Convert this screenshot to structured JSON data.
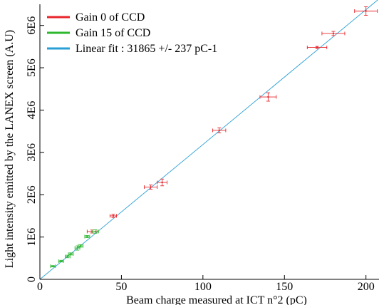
{
  "chart_data": {
    "type": "scatter",
    "xlabel": "Beam charge measured at ICT n°2 (pC)",
    "ylabel": "Light intensity emitted by the LANEX screen (A.U)",
    "xlim": [
      0,
      208
    ],
    "ylim": [
      0,
      6500000
    ],
    "x_ticks": [
      {
        "value": 0,
        "label": "0"
      },
      {
        "value": 50,
        "label": "50"
      },
      {
        "value": 100,
        "label": "100"
      },
      {
        "value": 150,
        "label": "150"
      },
      {
        "value": 200,
        "label": "200"
      }
    ],
    "y_ticks": [
      {
        "value": 0,
        "label": "0"
      },
      {
        "value": 1000000,
        "label": "1E6"
      },
      {
        "value": 2000000,
        "label": "2E6"
      },
      {
        "value": 3000000,
        "label": "3E6"
      },
      {
        "value": 4000000,
        "label": "4E6"
      },
      {
        "value": 5000000,
        "label": "5E6"
      },
      {
        "value": 6000000,
        "label": "6E6"
      }
    ],
    "grid": false,
    "legend_position": "top-left",
    "series": [
      {
        "name": "Gain 0 of CCD",
        "color": "#e8262b",
        "kind": "points",
        "points": [
          {
            "x": 32,
            "y": 1130000,
            "xerr": 3,
            "yerr": 35000
          },
          {
            "x": 45,
            "y": 1500000,
            "xerr": 2,
            "yerr": 40000
          },
          {
            "x": 68,
            "y": 2180000,
            "xerr": 4,
            "yerr": 50000
          },
          {
            "x": 75,
            "y": 2290000,
            "xerr": 3,
            "yerr": 80000
          },
          {
            "x": 110,
            "y": 3520000,
            "xerr": 4,
            "yerr": 60000
          },
          {
            "x": 140,
            "y": 4310000,
            "xerr": 5,
            "yerr": 100000
          },
          {
            "x": 170,
            "y": 5480000,
            "xerr": 6,
            "yerr": 25000
          },
          {
            "x": 180,
            "y": 5810000,
            "xerr": 7,
            "yerr": 50000
          },
          {
            "x": 200,
            "y": 6340000,
            "xerr": 7,
            "yerr": 100000
          }
        ]
      },
      {
        "name": "Gain 15 of CCD",
        "color": "#2eb82e",
        "kind": "points",
        "points": [
          {
            "x": 8,
            "y": 310000,
            "xerr": 1.5,
            "yerr": 15000
          },
          {
            "x": 13,
            "y": 430000,
            "xerr": 1.5,
            "yerr": 20000
          },
          {
            "x": 17,
            "y": 540000,
            "xerr": 1.5,
            "yerr": 30000
          },
          {
            "x": 19,
            "y": 600000,
            "xerr": 1.5,
            "yerr": 25000
          },
          {
            "x": 23,
            "y": 740000,
            "xerr": 1.5,
            "yerr": 50000
          },
          {
            "x": 25,
            "y": 790000,
            "xerr": 1.5,
            "yerr": 30000
          },
          {
            "x": 29,
            "y": 1010000,
            "xerr": 1.5,
            "yerr": 25000
          },
          {
            "x": 34,
            "y": 1130000,
            "xerr": 2,
            "yerr": 40000
          }
        ]
      },
      {
        "name": "Linear fit : 31865 +/- 237 pC-1",
        "color": "#2a9fd6",
        "kind": "line",
        "slope": 31865,
        "points": [
          {
            "x": 0,
            "y": 0
          },
          {
            "x": 208,
            "y": 6627920
          }
        ]
      }
    ]
  }
}
